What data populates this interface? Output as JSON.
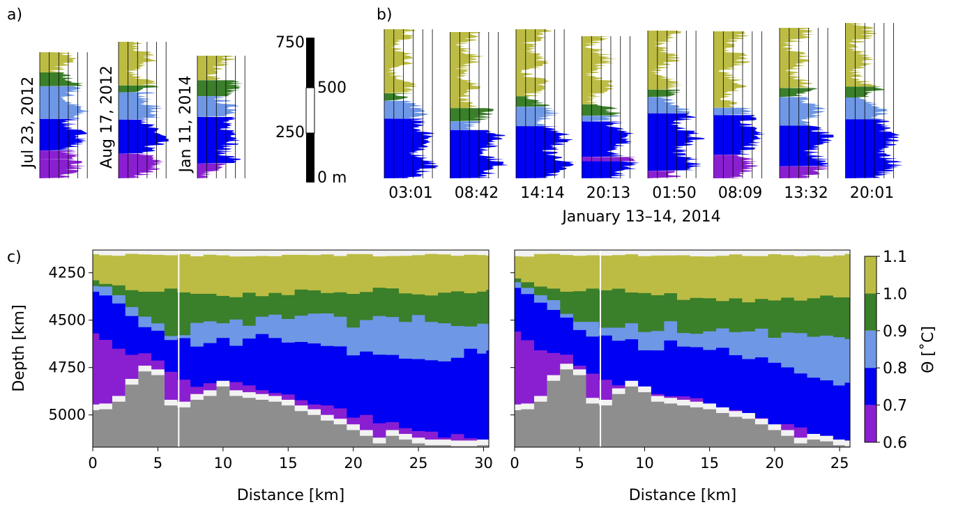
{
  "colors": {
    "c1": "#bcbc44",
    "c2": "#3a7f2a",
    "c3": "#6e97e6",
    "c4": "#0000f2",
    "c5": "#8a1fd2",
    "bathymetry": "#8e8e8e",
    "gap": "#f2f2f2"
  },
  "panel_a": {
    "label": "a)",
    "profiles": [
      {
        "date": "Jul 23, 2012",
        "bands": [
          0.6,
          0.7,
          0.9,
          1.0,
          0.6,
          0.8,
          0.7,
          0.6,
          0.7
        ]
      },
      {
        "date": "Aug 17, 2012",
        "bands": [
          1.0,
          0.9,
          0.8,
          0.7,
          0.6,
          0.7
        ]
      },
      {
        "date": "Jan 11, 2014",
        "bands": [
          1.0,
          0.9,
          0.8,
          0.7,
          0.6
        ]
      }
    ],
    "scale_bar": {
      "ticks": [
        "750",
        "500",
        "250",
        "0 m"
      ]
    }
  },
  "panel_b": {
    "label": "b)",
    "xlabel": "January 13–14, 2014",
    "times": [
      "03:01",
      "08:42",
      "14:14",
      "20:13",
      "01:50",
      "08:09",
      "13:32",
      "20:01"
    ]
  },
  "panel_c": {
    "label": "c)",
    "ylabel": "Depth [km]",
    "yticks": [
      "4250",
      "4500",
      "4750",
      "5000"
    ],
    "left": {
      "xlabel": "Distance [km]",
      "xticks": [
        "0",
        "5",
        "10",
        "15",
        "20",
        "25",
        "30"
      ],
      "xlim": [
        0,
        30.4
      ]
    },
    "right": {
      "xlabel": "Distance [km]",
      "xticks": [
        "0",
        "5",
        "10",
        "15",
        "20",
        "25"
      ],
      "xlim": [
        0,
        25.8
      ]
    }
  },
  "colorbar": {
    "label": "Θ [˚C]",
    "ticks": [
      "1.1",
      "1.0",
      "0.9",
      "0.8",
      "0.7",
      "0.6"
    ]
  },
  "chart_data": [
    {
      "type": "area",
      "panel": "a",
      "x": [
        "Jul 23, 2012",
        "Aug 17, 2012",
        "Jan 11, 2014"
      ],
      "scale_bar_m": [
        0,
        250,
        500,
        750
      ]
    },
    {
      "type": "area",
      "panel": "b",
      "x": [
        "03:01",
        "08:42",
        "14:14",
        "20:13",
        "01:50",
        "08:09",
        "13:32",
        "20:01"
      ],
      "xlabel": "January 13–14, 2014"
    },
    {
      "type": "heatmap",
      "panel": "c-left",
      "xlabel": "Distance [km]",
      "ylabel": "Depth [km]",
      "xlim": [
        0,
        30.4
      ],
      "ylim": [
        5170,
        4130
      ],
      "x": [
        0,
        1,
        2,
        3,
        4,
        5,
        6,
        7,
        8,
        9,
        10,
        11,
        12,
        13,
        14,
        15,
        16,
        17,
        18,
        19,
        20,
        21,
        22,
        23,
        24,
        25,
        26,
        27,
        28,
        29,
        30,
        30.4
      ],
      "bathymetry_depth": [
        4975,
        4970,
        4930,
        4840,
        4770,
        4790,
        4950,
        4960,
        4920,
        4900,
        4850,
        4900,
        4910,
        4920,
        4930,
        4950,
        4980,
        5000,
        5030,
        5050,
        5080,
        5110,
        5150,
        5110,
        5130,
        5150,
        5160,
        5160,
        5165,
        5165,
        5160,
        5160
      ],
      "isotherm_1.0_depth": [
        4290,
        4300,
        4320,
        4340,
        4355,
        4355,
        4340,
        4360,
        4350,
        4365,
        4370,
        4365,
        4355,
        4360,
        4350,
        4355,
        4345,
        4355,
        4345,
        4360,
        4350,
        4345,
        4330,
        4345,
        4350,
        4360,
        4355,
        4350,
        4345,
        4350,
        4340,
        4340
      ],
      "isotherm_0.8_depth": [
        4320,
        4340,
        4380,
        4440,
        4490,
        4520,
        4570,
        4580,
        4530,
        4520,
        4530,
        4510,
        4520,
        4500,
        4490,
        4500,
        4490,
        4480,
        4460,
        4470,
        4520,
        4500,
        4490,
        4500,
        4510,
        4490,
        4510,
        4530,
        4550,
        4530,
        4520,
        4520
      ],
      "isotherm_0.7_depth": [
        4350,
        4380,
        4420,
        4480,
        4520,
        4560,
        4600,
        4610,
        4640,
        4610,
        4600,
        4620,
        4600,
        4590,
        4590,
        4600,
        4600,
        4610,
        4630,
        4650,
        4700,
        4680,
        4690,
        4700,
        4720,
        4700,
        4710,
        4700,
        4680,
        4670,
        4660,
        4660
      ],
      "isotherm_0.6_depth": [
        4570,
        4620,
        4640,
        4680,
        4690,
        4720,
        4760,
        4830,
        4870,
        4850,
        4830,
        4830,
        4860,
        4880,
        4890,
        4900,
        4920,
        4930,
        4960,
        4980,
        5000,
        5010,
        5030,
        5050,
        5060,
        5080,
        5100,
        5110,
        5120,
        5130,
        5140,
        5140
      ]
    },
    {
      "type": "heatmap",
      "panel": "c-right",
      "xlabel": "Distance [km]",
      "xlim": [
        0,
        25.8
      ],
      "ylim": [
        5170,
        4130
      ],
      "x": [
        0,
        1,
        2,
        3,
        4,
        5,
        6,
        7,
        8,
        9,
        10,
        11,
        12,
        13,
        14,
        15,
        16,
        17,
        18,
        19,
        20,
        21,
        22,
        23,
        24,
        25,
        25.8
      ],
      "bathymetry_depth": [
        4975,
        4970,
        4930,
        4820,
        4760,
        4790,
        4940,
        4950,
        4890,
        4850,
        4880,
        4930,
        4940,
        4950,
        4960,
        4970,
        4990,
        5010,
        5020,
        5050,
        5080,
        5110,
        5150,
        5130,
        5140,
        5160,
        5165
      ],
      "isotherm_1.0_depth": [
        4280,
        4290,
        4310,
        4330,
        4345,
        4350,
        4340,
        4345,
        4345,
        4345,
        4345,
        4355,
        4360,
        4390,
        4390,
        4395,
        4395,
        4395,
        4400,
        4400,
        4400,
        4390,
        4390,
        4390,
        4380,
        4380,
        4380
      ],
      "isotherm_0.8_depth": [
        4300,
        4320,
        4350,
        4400,
        4450,
        4490,
        4510,
        4520,
        4530,
        4530,
        4550,
        4540,
        4520,
        4560,
        4560,
        4560,
        4560,
        4560,
        4570,
        4560,
        4580,
        4570,
        4580,
        4600,
        4600,
        4600,
        4600
      ],
      "isotherm_0.7_depth": [
        4330,
        4360,
        4400,
        4460,
        4500,
        4540,
        4570,
        4590,
        4620,
        4620,
        4650,
        4640,
        4620,
        4640,
        4650,
        4650,
        4660,
        4680,
        4700,
        4710,
        4720,
        4740,
        4780,
        4800,
        4820,
        4830,
        4830
      ],
      "isotherm_0.6_depth": [
        4560,
        4620,
        4650,
        4680,
        4700,
        4730,
        4790,
        4830,
        4860,
        4880,
        4870,
        4890,
        4900,
        4910,
        4920,
        4940,
        4960,
        4980,
        5000,
        5020,
        5040,
        5060,
        5080,
        5110,
        5130,
        5140,
        5140
      ]
    }
  ]
}
